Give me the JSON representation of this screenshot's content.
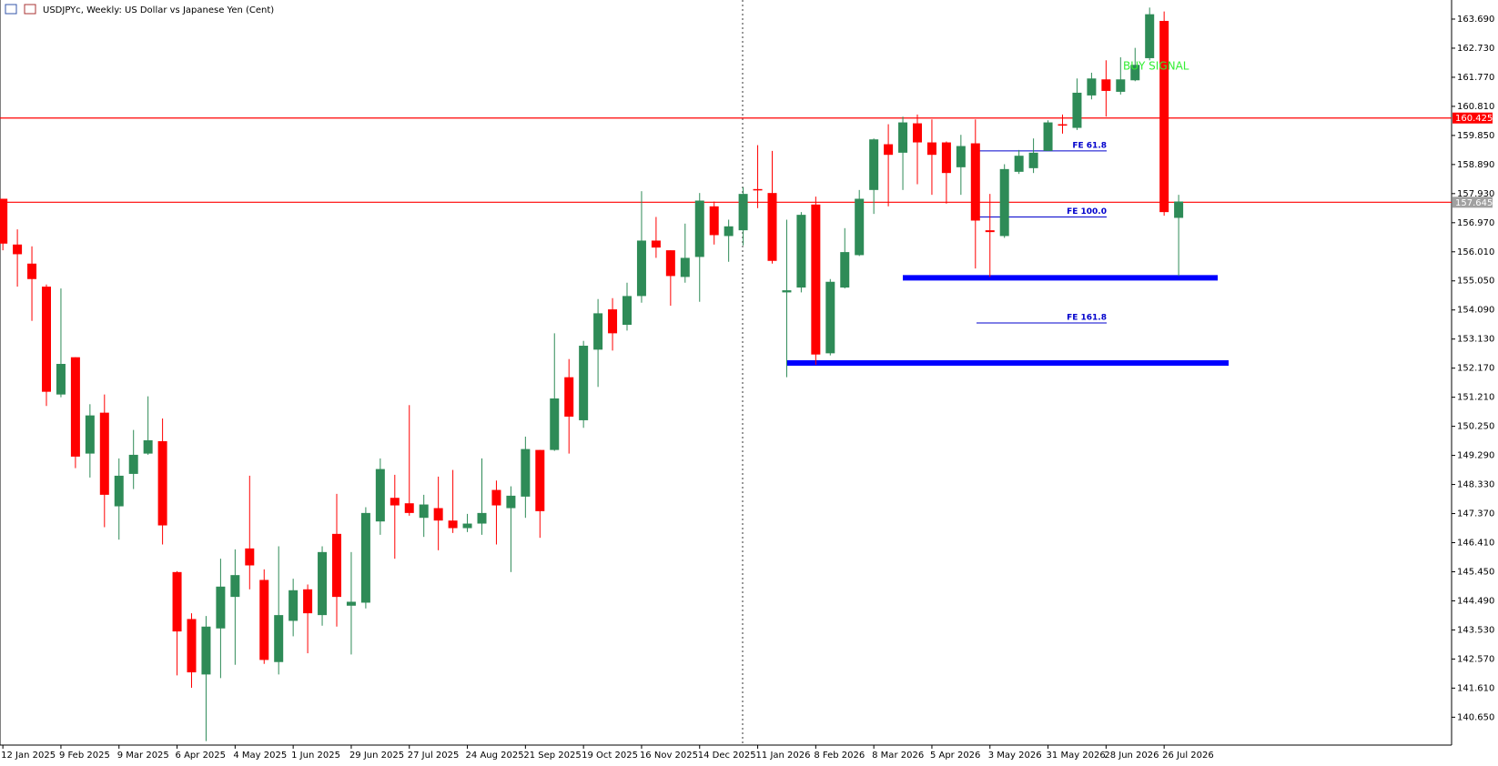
{
  "chart_data": {
    "type": "candlestick",
    "title": "USDJPYc, Weekly:  US Dollar vs Japanese Yen (Cent)",
    "x": [
      "12 Jan 2025",
      null,
      null,
      null,
      "9 Feb 2025",
      null,
      null,
      null,
      "9 Mar 2025",
      null,
      null,
      null,
      "6 Apr 2025",
      null,
      null,
      null,
      "4 May 2025",
      null,
      null,
      null,
      "1 Jun 2025",
      null,
      null,
      null,
      "29 Jun 2025",
      null,
      null,
      null,
      "27 Jul 2025",
      null,
      null,
      null,
      "24 Aug 2025",
      null,
      null,
      null,
      "21 Sep 2025",
      null,
      null,
      null,
      "19 Oct 2025",
      null,
      null,
      null,
      "16 Nov 2025",
      null,
      null,
      null,
      "14 Dec 2025",
      null,
      null,
      null,
      "11 Jan 2026",
      null,
      null,
      null,
      "8 Feb 2026",
      null,
      null,
      null,
      "8 Mar 2026",
      null,
      null,
      null,
      "5 Apr 2026",
      null,
      null,
      null,
      "3 May 2026",
      null,
      null,
      null,
      "31 May 2026",
      null,
      null,
      null,
      "28 Jun 2026",
      null,
      null,
      null,
      "26 Jul 2026",
      null
    ],
    "open": [
      157.76,
      156.25,
      155.62,
      154.86,
      151.3,
      152.53,
      149.35,
      150.7,
      147.61,
      148.68,
      149.35,
      149.76,
      145.44,
      143.89,
      142.06,
      143.58,
      144.62,
      146.22,
      145.18,
      142.47,
      143.83,
      144.87,
      144.02,
      146.7,
      144.33,
      144.43,
      147.11,
      147.89,
      147.71,
      147.23,
      147.55,
      147.14,
      146.89,
      147.04,
      148.15,
      147.55,
      147.93,
      149.47,
      149.47,
      151.87,
      150.45,
      152.78,
      154.11,
      153.6,
      154.55,
      156.38,
      156.06,
      155.18,
      155.84,
      157.51,
      156.53,
      156.72,
      158.08,
      157.95,
      154.67,
      154.83,
      157.57,
      152.66,
      154.83,
      155.9,
      158.05,
      159.56,
      159.28,
      160.25,
      159.62,
      159.62,
      158.8,
      159.59,
      156.72,
      156.53,
      158.65,
      158.77,
      159.34,
      160.22,
      160.1,
      161.17,
      161.7,
      161.29,
      161.67,
      162.4,
      163.63,
      157.13
    ],
    "high": [
      157.76,
      156.75,
      156.19,
      154.93,
      154.8,
      152.53,
      150.98,
      151.3,
      149.19,
      150.13,
      151.24,
      150.51,
      145.47,
      144.08,
      143.99,
      145.88,
      146.19,
      148.62,
      145.53,
      146.29,
      145.22,
      145.03,
      146.29,
      148.02,
      146.1,
      147.58,
      149.19,
      148.65,
      150.95,
      147.99,
      148.59,
      148.81,
      147.36,
      149.19,
      148.46,
      148.27,
      149.91,
      149.47,
      153.32,
      152.47,
      153.07,
      154.45,
      154.48,
      154.99,
      158.01,
      157.16,
      156.06,
      156.94,
      157.95,
      157.67,
      157.07,
      158.14,
      159.53,
      159.34,
      157.07,
      157.32,
      157.83,
      155.11,
      156.79,
      158.05,
      159.75,
      160.22,
      160.47,
      160.54,
      160.38,
      159.65,
      159.87,
      160.38,
      157.92,
      158.9,
      159.37,
      159.75,
      160.35,
      160.54,
      161.73,
      161.92,
      162.33,
      162.43,
      162.74,
      164.07,
      163.94,
      157.89
    ],
    "low": [
      156.06,
      154.86,
      153.73,
      150.92,
      151.21,
      148.87,
      148.56,
      146.92,
      146.51,
      148.18,
      149.31,
      146.35,
      142.03,
      141.62,
      139.86,
      141.94,
      142.38,
      144.87,
      142.41,
      142.06,
      143.32,
      142.76,
      143.67,
      143.64,
      142.72,
      144.24,
      146.67,
      145.88,
      147.3,
      146.6,
      146.16,
      146.73,
      146.76,
      146.67,
      146.35,
      145.44,
      147.23,
      146.57,
      149.44,
      149.35,
      150.2,
      151.55,
      152.75,
      153.41,
      154.33,
      155.81,
      154.23,
      154.99,
      154.36,
      156.25,
      155.68,
      156.22,
      157.45,
      155.62,
      151.87,
      154.67,
      152.28,
      152.59,
      154.8,
      155.87,
      157.26,
      157.51,
      158.05,
      158.24,
      157.89,
      157.6,
      157.89,
      155.46,
      155.18,
      156.47,
      158.58,
      158.61,
      159.34,
      159.91,
      160.03,
      161.04,
      160.47,
      161.2,
      161.64,
      162.33,
      157.2,
      155.21
    ],
    "close": [
      156.28,
      155.93,
      155.11,
      151.39,
      152.31,
      149.25,
      150.61,
      147.99,
      148.62,
      149.31,
      149.79,
      146.98,
      143.48,
      142.13,
      143.64,
      144.96,
      145.34,
      145.66,
      142.54,
      144.02,
      144.84,
      144.08,
      146.1,
      144.62,
      144.46,
      147.39,
      148.84,
      147.64,
      147.39,
      147.67,
      147.14,
      146.89,
      147.04,
      147.39,
      147.64,
      147.96,
      149.5,
      147.45,
      151.17,
      150.57,
      152.91,
      153.98,
      153.32,
      154.55,
      156.38,
      156.15,
      155.21,
      155.81,
      157.7,
      156.56,
      156.85,
      157.92,
      158.05,
      155.71,
      154.74,
      157.23,
      152.62,
      155.02,
      156.0,
      157.76,
      159.72,
      159.21,
      160.28,
      159.62,
      159.21,
      158.61,
      159.5,
      157.04,
      156.66,
      158.74,
      159.18,
      159.28,
      160.28,
      160.19,
      161.26,
      161.73,
      161.32,
      161.7,
      162.18,
      163.85,
      157.32,
      157.67
    ],
    "up_color": "#2e8b57",
    "down_color": "#ff0000",
    "ylim": [
      139.73,
      164.32
    ],
    "yticks": [
      {
        "value": 163.69,
        "label": "163.690"
      },
      {
        "value": 162.73,
        "label": "162.730"
      },
      {
        "value": 161.77,
        "label": "161.770"
      },
      {
        "value": 160.81,
        "label": "160.810"
      },
      {
        "value": 159.85,
        "label": "159.850"
      },
      {
        "value": 158.89,
        "label": "158.890"
      },
      {
        "value": 157.93,
        "label": "157.930"
      },
      {
        "value": 156.97,
        "label": "156.970"
      },
      {
        "value": 156.01,
        "label": "156.010"
      },
      {
        "value": 155.05,
        "label": "155.050"
      },
      {
        "value": 154.09,
        "label": "154.090"
      },
      {
        "value": 153.13,
        "label": "153.130"
      },
      {
        "value": 152.17,
        "label": "152.170"
      },
      {
        "value": 151.21,
        "label": "151.210"
      },
      {
        "value": 150.25,
        "label": "150.250"
      },
      {
        "value": 149.29,
        "label": "149.290"
      },
      {
        "value": 148.33,
        "label": "148.330"
      },
      {
        "value": 147.37,
        "label": "147.370"
      },
      {
        "value": 146.41,
        "label": "146.410"
      },
      {
        "value": 145.45,
        "label": "145.450"
      },
      {
        "value": 144.49,
        "label": "144.490"
      },
      {
        "value": 143.53,
        "label": "143.530"
      },
      {
        "value": 142.57,
        "label": "142.570"
      },
      {
        "value": 141.61,
        "label": "141.610"
      },
      {
        "value": 140.65,
        "label": "140.650"
      }
    ],
    "hlines": [
      {
        "value": 160.425,
        "color": "#ff0000",
        "label_bg": "#ff0000"
      },
      {
        "value": 157.645,
        "color": "#ff0000",
        "label_bg": "#a0a0a0"
      }
    ],
    "levels": [
      {
        "value": 155.15,
        "color": "#0000ff"
      },
      {
        "value": 152.34,
        "color": "#0000ff"
      }
    ],
    "fibo": [
      {
        "label": "FE 61.8",
        "value": 159.34
      },
      {
        "label": "FE 100.0",
        "value": 157.16
      },
      {
        "label": "FE 161.8",
        "value": 153.66
      }
    ],
    "fibo_color": "#0000cc",
    "signal": {
      "text": "BUY SIGNAL",
      "color": "#33ee33"
    }
  }
}
